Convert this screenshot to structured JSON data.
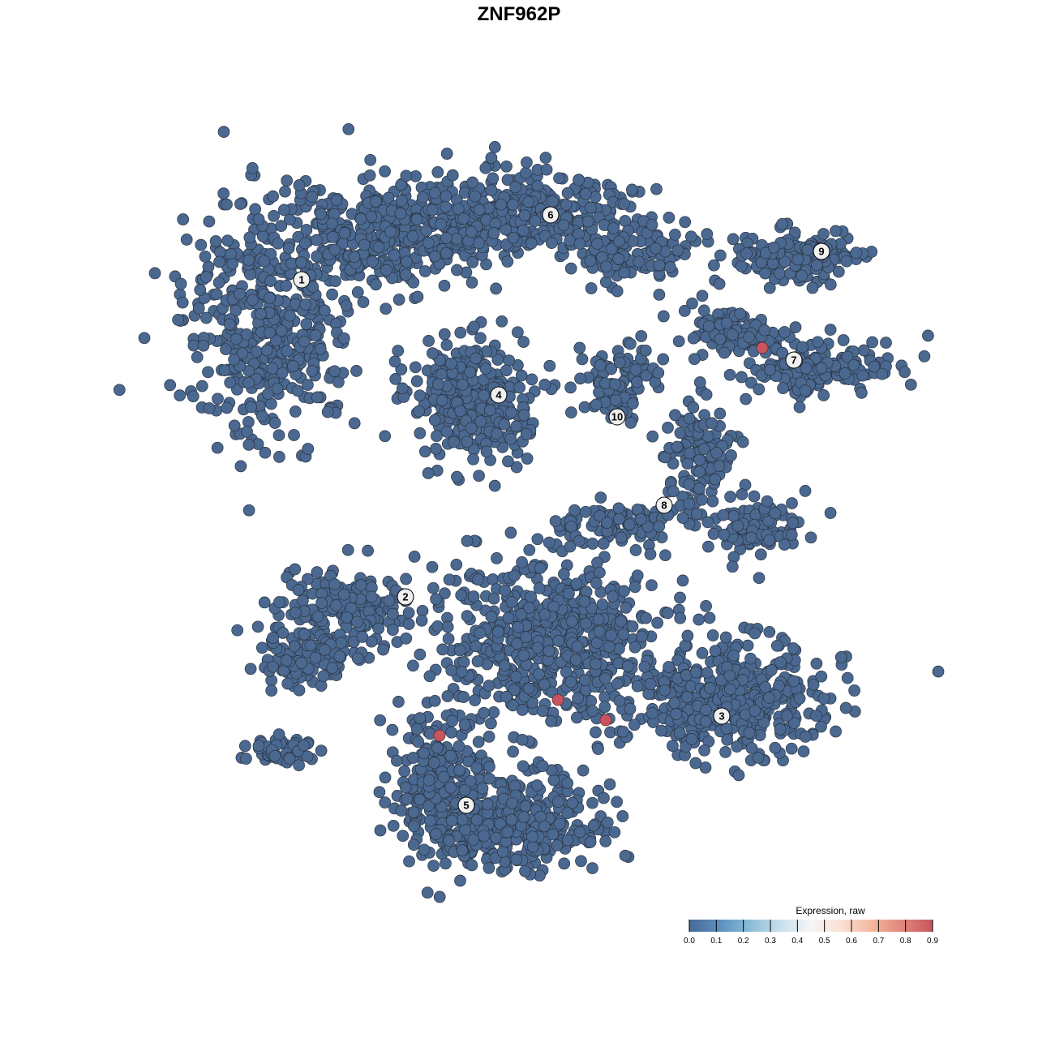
{
  "chart_data": {
    "type": "scatter",
    "title": "ZNF962P",
    "xlabel": "",
    "ylabel": "",
    "grid": false,
    "axes_visible": false,
    "point_color_default": "#4a6890",
    "point_color_high": "#c8545f",
    "default_expression": 0.0,
    "clusters": [
      {
        "label": "1",
        "x": -26.8,
        "y": 29.5
      },
      {
        "label": "6",
        "x": 3.9,
        "y": 37.5
      },
      {
        "label": "9",
        "x": 37.3,
        "y": 33.0
      },
      {
        "label": "7",
        "x": 33.9,
        "y": 19.6
      },
      {
        "label": "4",
        "x": -2.5,
        "y": 15.3
      },
      {
        "label": "10",
        "x": 12.1,
        "y": 12.6
      },
      {
        "label": "8",
        "x": 17.9,
        "y": 1.7
      },
      {
        "label": "2",
        "x": -14.0,
        "y": -9.6
      },
      {
        "label": "3",
        "x": 25.0,
        "y": -24.3
      },
      {
        "label": "5",
        "x": -6.5,
        "y": -35.3
      }
    ],
    "high_expression_points": [
      {
        "x": 30.0,
        "y": 21.1,
        "value": 0.9
      },
      {
        "x": 4.8,
        "y": -22.3,
        "value": 0.9
      },
      {
        "x": 10.7,
        "y": -24.8,
        "value": 0.9
      },
      {
        "x": -9.8,
        "y": -26.7,
        "value": 0.9
      }
    ],
    "legend": {
      "title": "Expression, raw",
      "placement": "bottom-right",
      "range": [
        0.0,
        0.9
      ],
      "ticks": [
        "0.0",
        "0.1",
        "0.2",
        "0.3",
        "0.4",
        "0.5",
        "0.6",
        "0.7",
        "0.8",
        "0.9"
      ],
      "colors": [
        "#4a6a96",
        "#5b8fc0",
        "#8bbcd8",
        "#c9e0ec",
        "#f5f5f5",
        "#fbe0d3",
        "#f3b8a0",
        "#e0857a",
        "#c8545f"
      ]
    }
  }
}
